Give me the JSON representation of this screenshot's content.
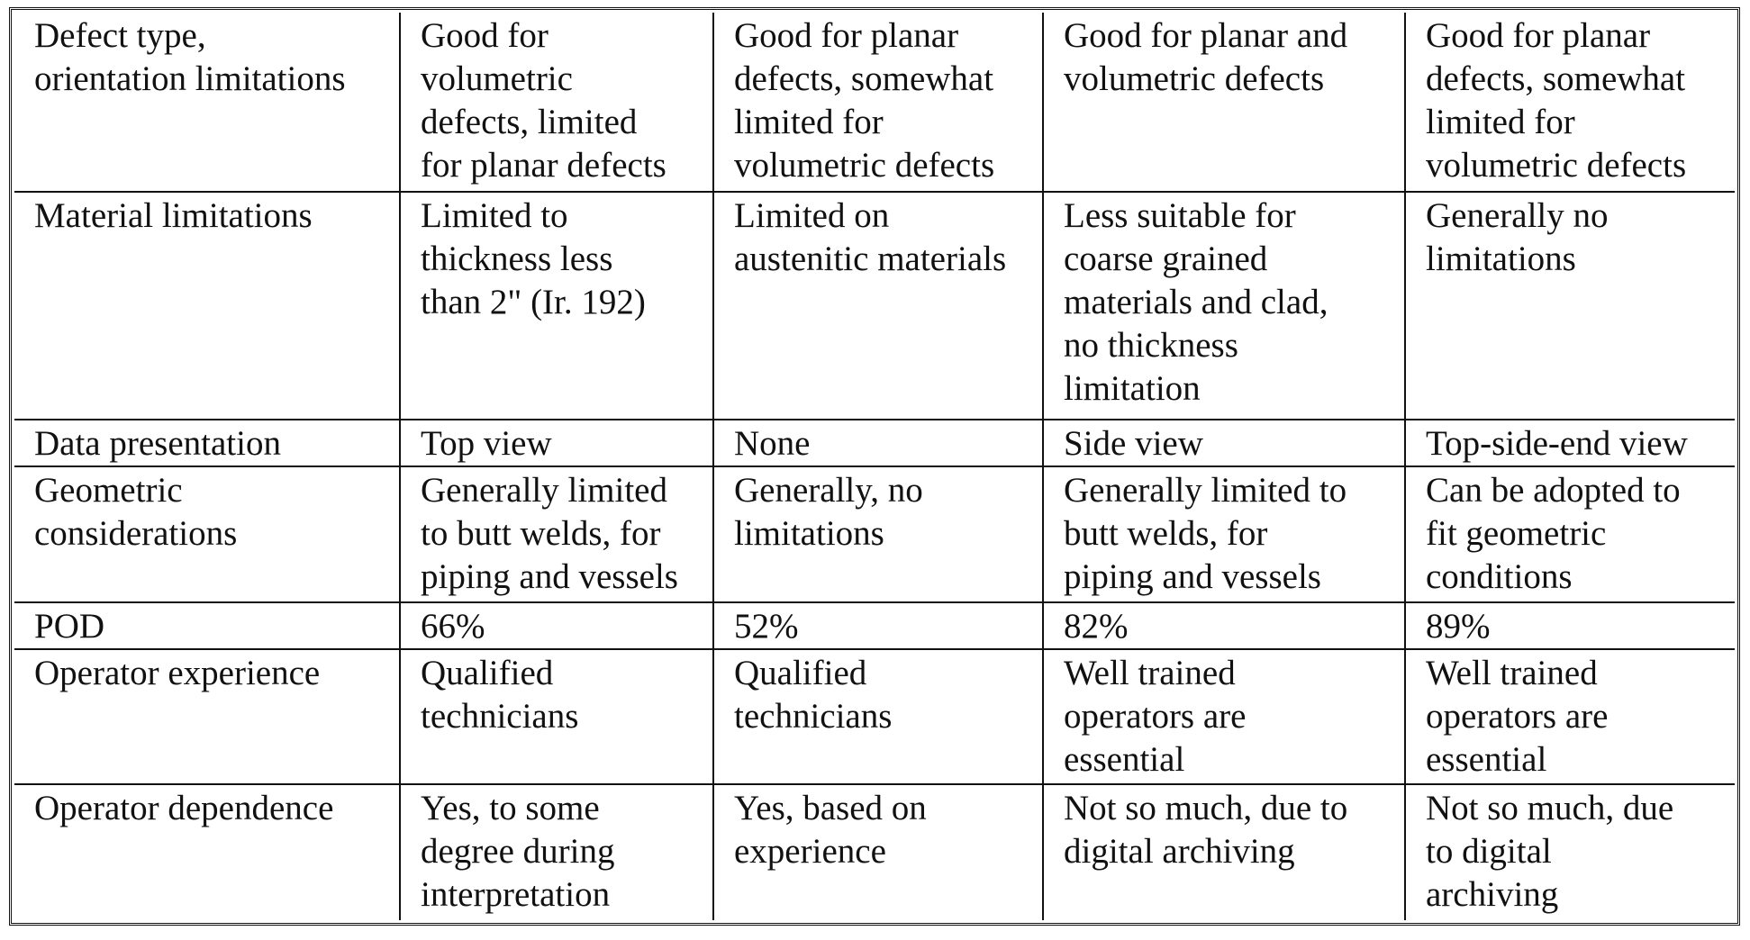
{
  "table": {
    "rows": [
      {
        "label": "Defect type,\norientation limitations",
        "cells": [
          "Good for\nvolumetric\ndefects, limited\nfor planar defects",
          "Good for planar\ndefects, somewhat\nlimited for\nvolumetric defects",
          "Good for planar and\nvolumetric defects",
          "Good for planar\ndefects, somewhat\nlimited for\nvolumetric defects"
        ]
      },
      {
        "label": "Material limitations",
        "cells": [
          "Limited to\nthickness less\nthan 2\" (Ir. 192)",
          "Limited on\naustenitic materials",
          "Less suitable for\ncoarse grained\nmaterials and clad,\nno thickness\nlimitation",
          "Generally no\nlimitations"
        ]
      },
      {
        "label": "Data presentation",
        "cells": [
          "Top view",
          "None",
          "Side view",
          "Top-side-end view"
        ]
      },
      {
        "label": "Geometric\nconsiderations",
        "cells": [
          "Generally limited\nto butt welds, for\npiping and vessels",
          "Generally, no\nlimitations",
          "Generally limited to\nbutt welds, for\npiping and vessels",
          "Can be adopted to\nfit geometric\nconditions"
        ]
      },
      {
        "label": "POD",
        "cells": [
          "66%",
          "52%",
          "82%",
          "89%"
        ]
      },
      {
        "label": "Operator experience",
        "cells": [
          "Qualified\ntechnicians",
          "Qualified\ntechnicians",
          "Well trained\noperators are\nessential",
          "Well trained\noperators are\nessential"
        ]
      },
      {
        "label": "Operator dependence",
        "cells": [
          "Yes, to some\ndegree during\ninterpretation",
          "Yes, based on\nexperience",
          "Not so much, due to\ndigital archiving",
          "Not so much, due\nto digital\narchiving"
        ]
      }
    ]
  }
}
